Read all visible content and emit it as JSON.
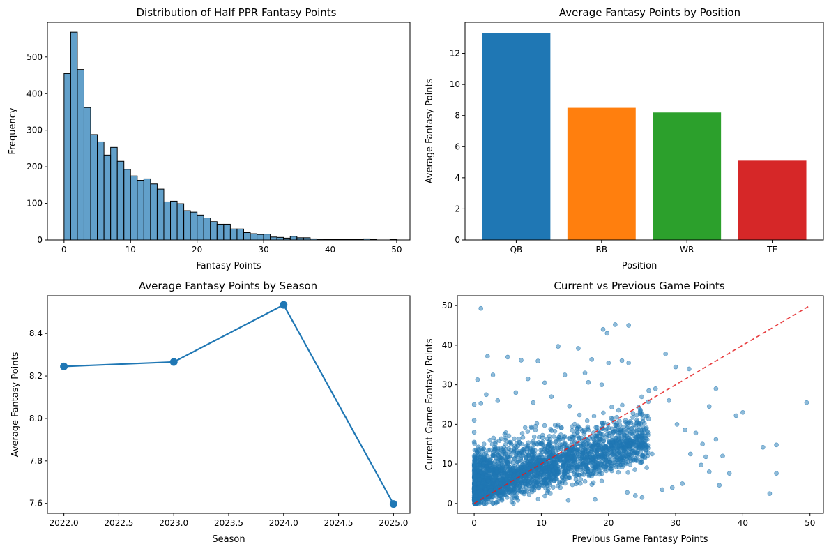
{
  "colors": {
    "primary": "#1f77b4",
    "orange": "#ff7f0e",
    "green": "#2ca02c",
    "red": "#d62728",
    "reference_line": "#e41a1c"
  },
  "chart_data": [
    {
      "type": "bar",
      "subtype": "histogram",
      "title": "Distribution of Half PPR Fantasy Points",
      "xlabel": "Fantasy Points",
      "ylabel": "Frequency",
      "xlim": [
        -2.5,
        52
      ],
      "ylim": [
        0,
        595
      ],
      "xticks": [
        0,
        10,
        20,
        30,
        40,
        50
      ],
      "yticks": [
        0,
        100,
        200,
        300,
        400,
        500
      ],
      "bin_start": 0,
      "bin_width": 1,
      "values": [
        455,
        568,
        466,
        362,
        288,
        268,
        232,
        253,
        215,
        193,
        175,
        163,
        167,
        153,
        139,
        104,
        106,
        99,
        80,
        76,
        68,
        60,
        50,
        43,
        43,
        30,
        30,
        20,
        17,
        15,
        16,
        8,
        7,
        5,
        10,
        6,
        6,
        3,
        2,
        1,
        1,
        1,
        1,
        1,
        1,
        3,
        1,
        0,
        0,
        1
      ]
    },
    {
      "type": "bar",
      "title": "Average Fantasy Points by Position",
      "xlabel": "Position",
      "ylabel": "Average Fantasy Points",
      "categories": [
        "QB",
        "RB",
        "WR",
        "TE"
      ],
      "values": [
        13.3,
        8.5,
        8.2,
        5.1
      ],
      "bar_colors": [
        "#1f77b4",
        "#ff7f0e",
        "#2ca02c",
        "#d62728"
      ],
      "ylim": [
        0,
        14
      ],
      "yticks": [
        0,
        2,
        4,
        6,
        8,
        10,
        12
      ]
    },
    {
      "type": "line",
      "title": "Average Fantasy Points by Season",
      "xlabel": "Season",
      "ylabel": "Average Fantasy Points",
      "x": [
        2022,
        2023,
        2024,
        2025
      ],
      "y": [
        8.245,
        8.266,
        8.535,
        7.597
      ],
      "xlim": [
        2021.85,
        2025.15
      ],
      "ylim": [
        7.553,
        8.578
      ],
      "xticks": [
        2022.0,
        2022.5,
        2023.0,
        2023.5,
        2024.0,
        2024.5,
        2025.0
      ],
      "xtick_labels": [
        "2022.0",
        "2022.5",
        "2023.0",
        "2023.5",
        "2024.0",
        "2024.5",
        "2025.0"
      ],
      "yticks": [
        7.6,
        7.8,
        8.0,
        8.2,
        8.4
      ],
      "ytick_labels": [
        "7.6",
        "7.8",
        "8.0",
        "8.2",
        "8.4"
      ]
    },
    {
      "type": "scatter",
      "title": "Current vs Previous Game Points",
      "xlabel": "Previous Game Fantasy Points",
      "ylabel": "Current Game Fantasy Points",
      "xlim": [
        -2.5,
        52
      ],
      "ylim": [
        -2.5,
        52.5
      ],
      "xticks": [
        0,
        10,
        20,
        30,
        40,
        50
      ],
      "yticks": [
        0,
        10,
        20,
        30,
        40,
        50
      ],
      "reference_line": {
        "x": [
          0,
          50
        ],
        "y": [
          0,
          50
        ],
        "style": "dashed"
      },
      "points": [
        [
          1.0,
          49.3
        ],
        [
          21.0,
          45.2
        ],
        [
          23.0,
          45.0
        ],
        [
          44.0,
          2.5
        ],
        [
          45.0,
          14.8
        ],
        [
          45.0,
          7.6
        ],
        [
          43.0,
          14.2
        ],
        [
          40.0,
          23.0
        ],
        [
          39.0,
          22.2
        ],
        [
          38.0,
          7.6
        ],
        [
          49.5,
          25.5
        ],
        [
          36.0,
          16.2
        ],
        [
          36.0,
          29.0
        ],
        [
          35.0,
          24.5
        ],
        [
          34.0,
          15.0
        ],
        [
          33.0,
          17.8
        ],
        [
          32.0,
          34.0
        ],
        [
          30.0,
          34.5
        ],
        [
          28.5,
          37.8
        ],
        [
          19.2,
          44.0
        ],
        [
          19.8,
          43.0
        ],
        [
          12.5,
          39.7
        ],
        [
          15.5,
          39.2
        ],
        [
          5.0,
          37.0
        ],
        [
          2.0,
          37.2
        ],
        [
          7.0,
          36.2
        ],
        [
          9.5,
          36.0
        ],
        [
          17.5,
          36.4
        ],
        [
          20.0,
          35.5
        ],
        [
          22.0,
          36.1
        ],
        [
          23.0,
          35.5
        ],
        [
          33.8,
          9.7
        ],
        [
          31.0,
          5.0
        ],
        [
          35.0,
          8.0
        ],
        [
          36.5,
          4.6
        ],
        [
          37.0,
          12.0
        ],
        [
          34.5,
          11.8
        ],
        [
          0.5,
          31.3
        ],
        [
          1.0,
          25.3
        ],
        [
          2.8,
          32.5
        ],
        [
          27.0,
          29.0
        ],
        [
          26.0,
          28.5
        ],
        [
          29.0,
          26.0
        ],
        [
          30.2,
          20.0
        ],
        [
          31.4,
          18.6
        ],
        [
          32.2,
          12.5
        ],
        [
          28.0,
          3.5
        ],
        [
          29.5,
          4.0
        ],
        [
          24.0,
          2.0
        ],
        [
          25.0,
          1.5
        ],
        [
          22.8,
          2.8
        ],
        [
          26.5,
          12.5
        ],
        [
          18.0,
          1.0
        ],
        [
          14.0,
          0.8
        ],
        [
          16.5,
          33.0
        ],
        [
          13.5,
          32.5
        ],
        [
          8.0,
          31.5
        ],
        [
          10.5,
          30.5
        ],
        [
          17.0,
          30.6
        ],
        [
          19.0,
          30.0
        ],
        [
          0.0,
          25.0
        ],
        [
          0.0,
          21.0
        ],
        [
          0.0,
          18.0
        ],
        [
          0.0,
          15.5
        ],
        [
          0.0,
          12.0
        ],
        [
          0.0,
          9.5
        ],
        [
          0.0,
          6.5
        ],
        [
          0.0,
          3.5
        ],
        [
          0.0,
          1.0
        ],
        [
          0.5,
          0.2
        ],
        [
          1.8,
          27.5
        ],
        [
          3.5,
          26.0
        ],
        [
          6.2,
          28.0
        ],
        [
          8.8,
          25.5
        ],
        [
          11.5,
          27.0
        ],
        [
          14.2,
          24.6
        ],
        [
          4.2,
          3.0
        ],
        [
          2.5,
          8.4
        ],
        [
          5.6,
          6.2
        ],
        [
          7.7,
          11.5
        ]
      ],
      "cluster_description": "dense cluster of several thousand points concentrated near the origin, filling roughly 0-25 on both axes"
    }
  ]
}
